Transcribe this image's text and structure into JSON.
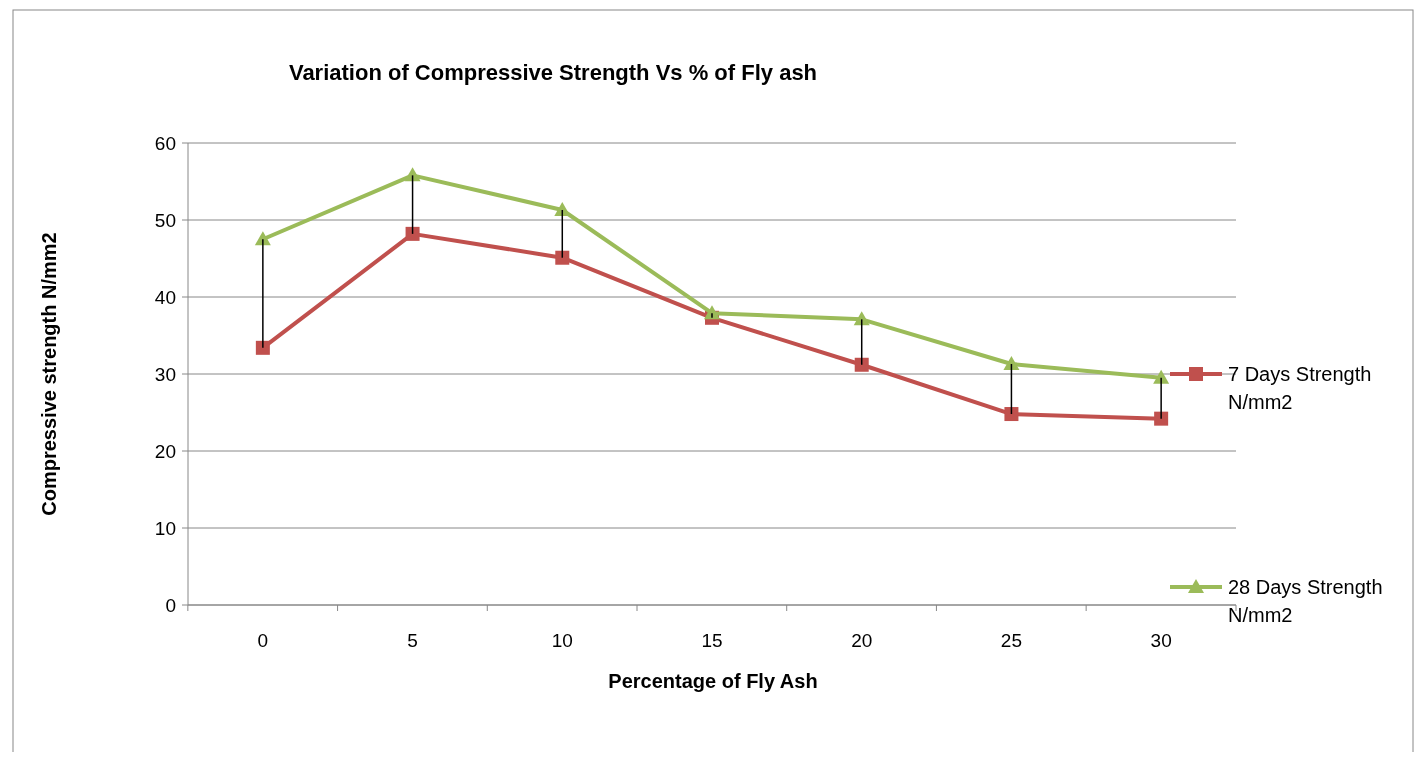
{
  "chart_data": {
    "type": "line",
    "title": "Variation of Compressive Strength Vs % of Fly ash",
    "xlabel": "Percentage of Fly Ash",
    "ylabel": "Compressive strength N/mm2",
    "categories": [
      "0",
      "5",
      "10",
      "15",
      "20",
      "25",
      "30"
    ],
    "series": [
      {
        "name": "7 Days Strength N/mm2",
        "color": "#c0504d",
        "marker": "square",
        "values": [
          33.4,
          48.2,
          45.1,
          37.3,
          31.2,
          24.8,
          24.2
        ],
        "errors": [
          [
            33.4,
            47.5
          ],
          [
            48.2,
            55.8
          ],
          [
            45.1,
            51.3
          ],
          [
            37.3,
            37.9
          ],
          [
            31.2,
            37.1
          ],
          [
            24.8,
            31.3
          ],
          [
            24.2,
            29.5
          ]
        ]
      },
      {
        "name": "28 Days Strength N/mm2",
        "color": "#9bbb59",
        "marker": "triangle",
        "values": [
          47.5,
          55.8,
          51.3,
          37.9,
          37.1,
          31.3,
          29.5
        ]
      }
    ],
    "ylim": [
      0,
      60
    ],
    "yticks": [
      0,
      10,
      20,
      30,
      40,
      50,
      60
    ],
    "grid": "y",
    "legend": "right",
    "line_style": "solid"
  }
}
